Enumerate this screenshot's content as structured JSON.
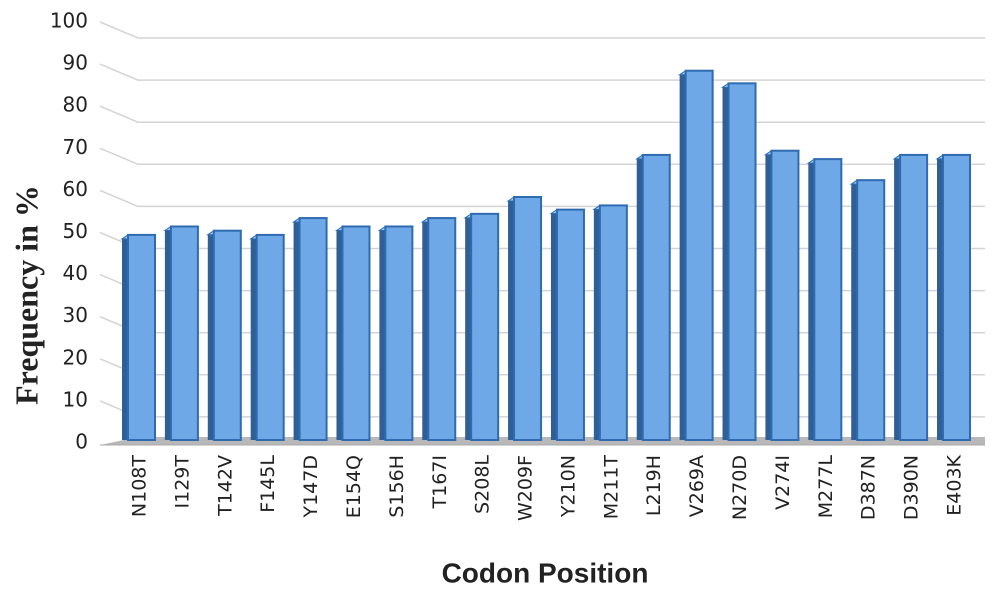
{
  "chart_data": {
    "type": "bar3d",
    "xlabel": "Codon Position",
    "ylabel": "Frequency in %",
    "categories": [
      "N108T",
      "I129T",
      "T142V",
      "F145L",
      "Y147D",
      "E154Q",
      "S156H",
      "T167I",
      "S208L",
      "W209F",
      "Y210N",
      "M211T",
      "L219H",
      "V269A",
      "N270D",
      "V274I",
      "M277L",
      "D387N",
      "D390N",
      "E403K"
    ],
    "values": [
      50,
      52,
      51,
      50,
      54,
      52,
      52,
      54,
      55,
      59,
      56,
      57,
      69,
      89,
      86,
      70,
      68,
      63,
      69,
      69
    ],
    "color": "#6fa8e6",
    "ylim": [
      0,
      100
    ],
    "yticks": [
      0,
      10,
      20,
      30,
      40,
      50,
      60,
      70,
      80,
      90,
      100
    ],
    "grid": true
  }
}
